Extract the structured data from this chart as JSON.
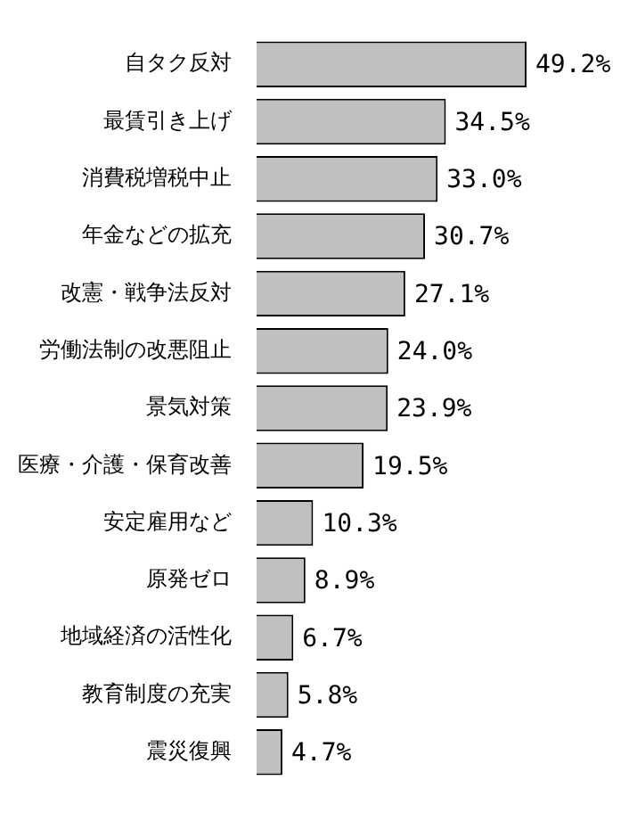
{
  "chart_data": {
    "type": "bar",
    "orientation": "horizontal",
    "categories": [
      "自タク反対",
      "最賃引き上げ",
      "消費税増税中止",
      "年金などの拡充",
      "改憲・戦争法反対",
      "労働法制の改悪阻止",
      "景気対策",
      "医療・介護・保育改善",
      "安定雇用など",
      "原発ゼロ",
      "地域経済の活性化",
      "教育制度の充実",
      "震災復興"
    ],
    "values": [
      49.2,
      34.5,
      33.0,
      30.7,
      27.1,
      24.0,
      23.9,
      19.5,
      10.3,
      8.9,
      6.7,
      5.8,
      4.7
    ],
    "value_labels": [
      "49.2%",
      "34.5%",
      "33.0%",
      "30.7%",
      "27.1%",
      "24.0%",
      "23.9%",
      "19.5%",
      "10.3%",
      "8.9%",
      "6.7%",
      "5.8%",
      "4.7%"
    ],
    "color": "#c0c0c0"
  }
}
